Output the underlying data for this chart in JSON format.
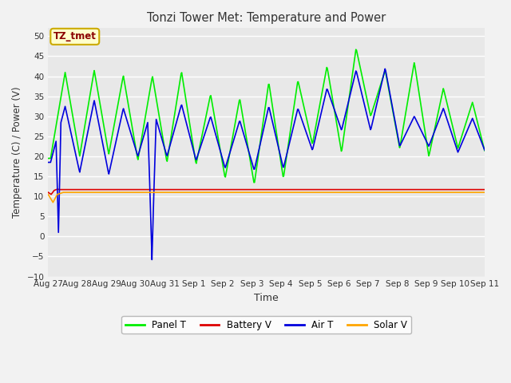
{
  "title": "Tonzi Tower Met: Temperature and Power",
  "xlabel": "Time",
  "ylabel": "Temperature (C) / Power (V)",
  "ylim": [
    -10,
    52
  ],
  "yticks": [
    -10,
    -5,
    0,
    5,
    10,
    15,
    20,
    25,
    30,
    35,
    40,
    45,
    50
  ],
  "x_labels": [
    "Aug 27",
    "Aug 28",
    "Aug 29",
    "Aug 30",
    "Aug 31",
    "Sep 1",
    "Sep 2",
    "Sep 3",
    "Sep 4",
    "Sep 5",
    "Sep 6",
    "Sep 7",
    "Sep 8",
    "Sep 9",
    "Sep 10",
    "Sep 11"
  ],
  "annotation_text": "TZ_tmet",
  "annotation_color": "#8B0000",
  "annotation_bg": "#FFFFCC",
  "annotation_edge": "#CCAA00",
  "fig_bg_color": "#F2F2F2",
  "plot_bg_color": "#E8E8E8",
  "grid_color": "#FFFFFF",
  "colors": {
    "panel_t": "#00EE00",
    "battery_v": "#DD0000",
    "air_t": "#0000DD",
    "solar_v": "#FFA500"
  },
  "legend_labels": [
    "Panel T",
    "Battery V",
    "Air T",
    "Solar V"
  ],
  "panel_peaks": [
    19.5,
    41,
    20,
    41.5,
    20.5,
    40.2,
    19,
    40.1,
    18.5,
    41.2,
    18,
    35.5,
    14.5,
    34.5,
    13,
    38.5,
    14.5,
    39,
    23,
    42.5,
    21,
    47,
    30,
    41.5,
    22,
    43.5,
    20,
    37,
    22,
    33.5,
    19,
    19
  ],
  "air_peaks": [
    18.5,
    32.5,
    16,
    34,
    15.5,
    32,
    20,
    32.5,
    20,
    33,
    19,
    30,
    17,
    29,
    16.5,
    32.5,
    17,
    32,
    21.5,
    37,
    26.5,
    41.5,
    26.5,
    42,
    22.5,
    30,
    22.5,
    32,
    21,
    29.5,
    20,
    20
  ],
  "battery_v_value": 11.7,
  "solar_v_value": 11.0,
  "n_days": 15,
  "spike_day": 3.55,
  "spike_min": -5.8,
  "early_dip_day": 0.35,
  "early_dip_val": 1.0
}
